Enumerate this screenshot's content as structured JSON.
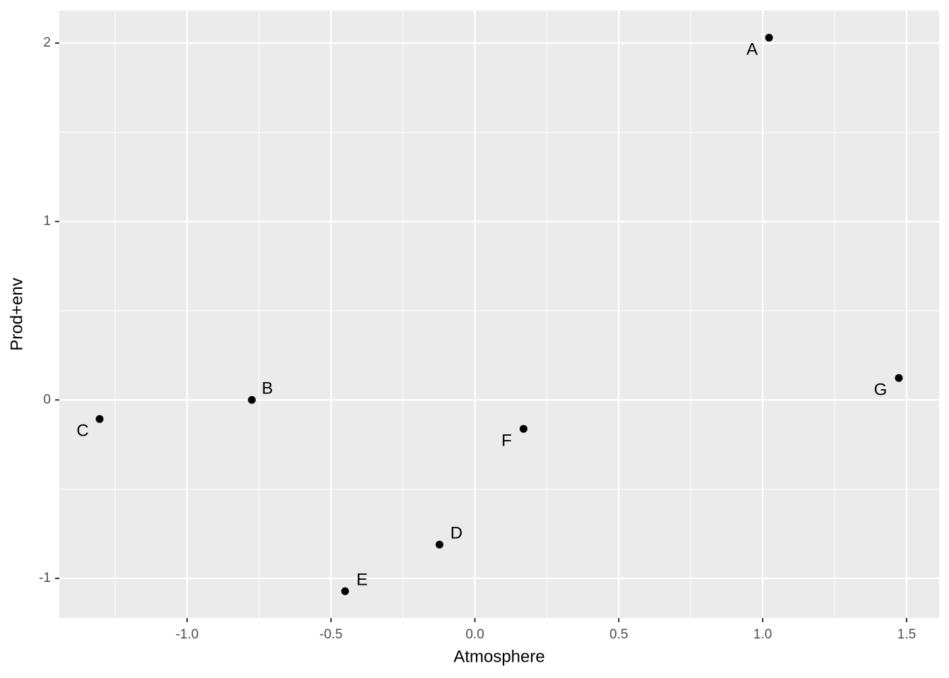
{
  "chart_data": {
    "type": "scatter",
    "x_label": "Atmosphere",
    "y_label": "Prod+env",
    "labels": [
      "A",
      "B",
      "C",
      "D",
      "E",
      "F",
      "G"
    ],
    "x": [
      1.022,
      -0.775,
      -1.304,
      -0.123,
      -0.451,
      0.169,
      1.473
    ],
    "y": [
      2.03,
      0.0,
      -0.107,
      -0.811,
      -1.072,
      -0.162,
      0.123
    ],
    "color": "#000000",
    "xlim": [
      -1.444,
      1.613
    ],
    "ylim": [
      -1.222,
      2.182
    ],
    "xticks": [
      {
        "value": -1,
        "label": "-1.0"
      },
      -0.5,
      {
        "value": 0,
        "label": "0.0"
      },
      0.5,
      {
        "value": 1,
        "label": "1.0"
      },
      1.5
    ],
    "yticks": [
      -1,
      0,
      1,
      2
    ],
    "grid": true
  }
}
